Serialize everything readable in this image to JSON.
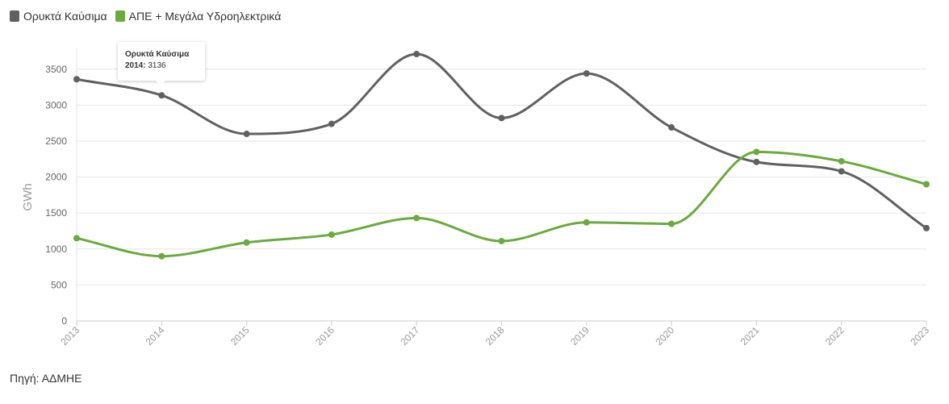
{
  "legend": {
    "items": [
      {
        "label": "Ορυκτά Καύσιμα",
        "color": "#606060"
      },
      {
        "label": "ΑΠΕ + Μεγάλα Υδροηλεκτρικά",
        "color": "#6aaa3f"
      }
    ]
  },
  "source": "Πηγή: ΑΔΜΗΕ",
  "tooltip": {
    "title": "Ορυκτά Καύσιμα",
    "year": "2014",
    "value": "3136"
  },
  "chart_data": {
    "type": "line",
    "ylabel": "GWh",
    "xlabel": "",
    "ylim": [
      0,
      3800
    ],
    "yticks": [
      0,
      500,
      1000,
      1500,
      2000,
      2500,
      3000,
      3500
    ],
    "categories": [
      "2013",
      "2014",
      "2015",
      "2016",
      "2017",
      "2018",
      "2019",
      "2020",
      "2021",
      "2022",
      "2023"
    ],
    "grid": true,
    "legend_position": "top-left",
    "series": [
      {
        "name": "Ορυκτά Καύσιμα",
        "color": "#606060",
        "values": [
          3360,
          3136,
          2600,
          2740,
          3710,
          2820,
          3440,
          2690,
          2210,
          2080,
          1290
        ]
      },
      {
        "name": "ΑΠΕ + Μεγάλα Υδροηλεκτρικά",
        "color": "#6aaa3f",
        "values": [
          1150,
          900,
          1090,
          1200,
          1430,
          1110,
          1370,
          1350,
          2350,
          2220,
          1900
        ]
      }
    ]
  }
}
